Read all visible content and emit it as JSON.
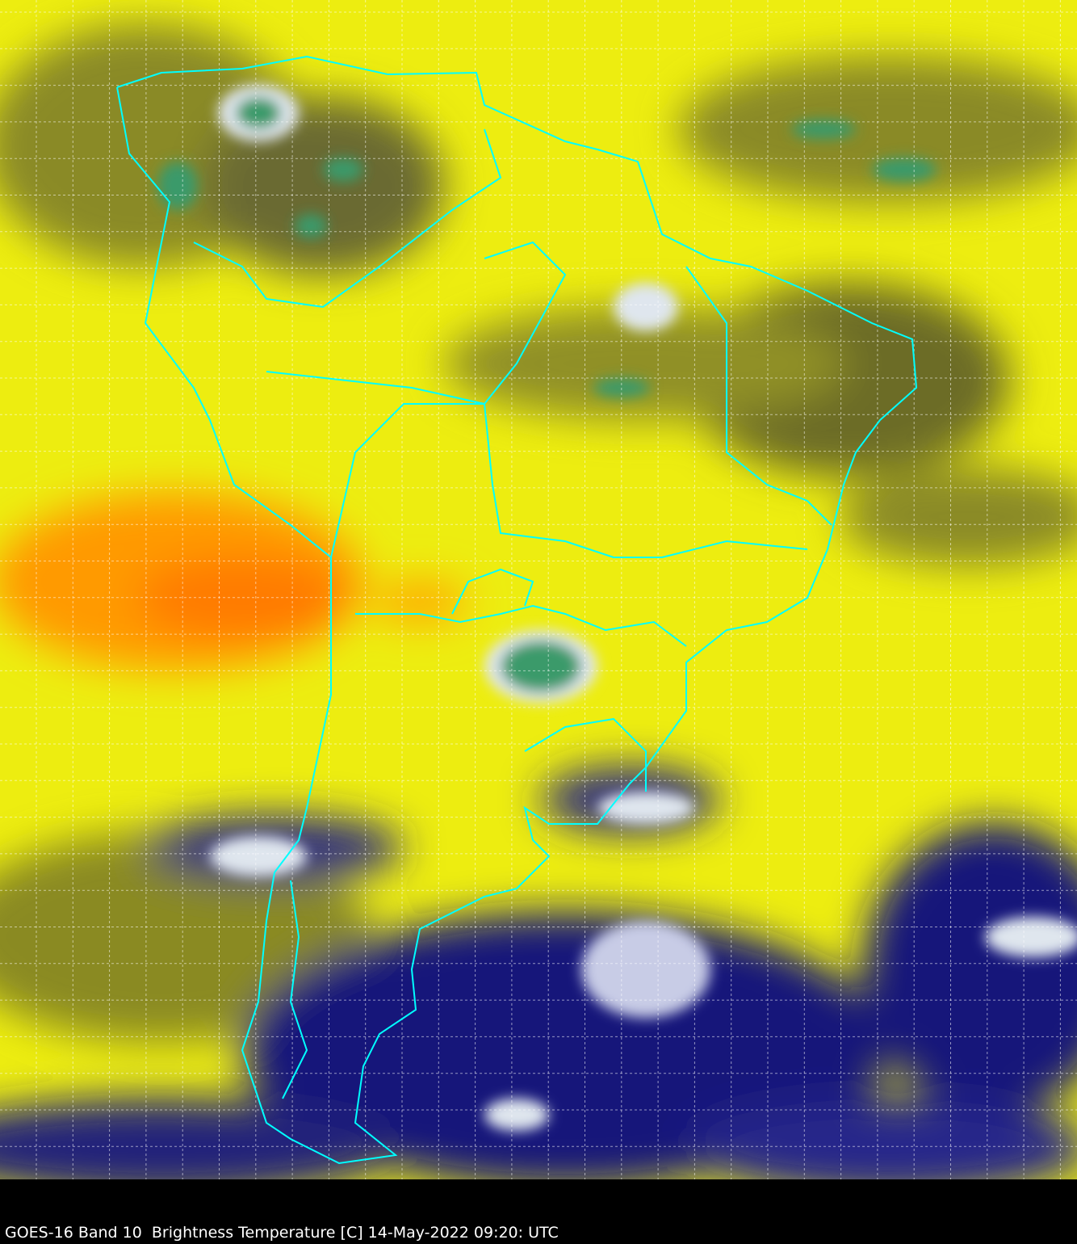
{
  "caption": "GOES-16 Band 10  Brightness Temperature [C] 14-May-2022 09:20: UTC",
  "colors": {
    "background": "#000000",
    "warm": "#ff8800",
    "mid": "#ffff00",
    "moist": "#7a7a20",
    "cold": "#10107a",
    "coldest": "#3a9a6a",
    "borders": "#00ffff",
    "grid": "#ffffff"
  }
}
